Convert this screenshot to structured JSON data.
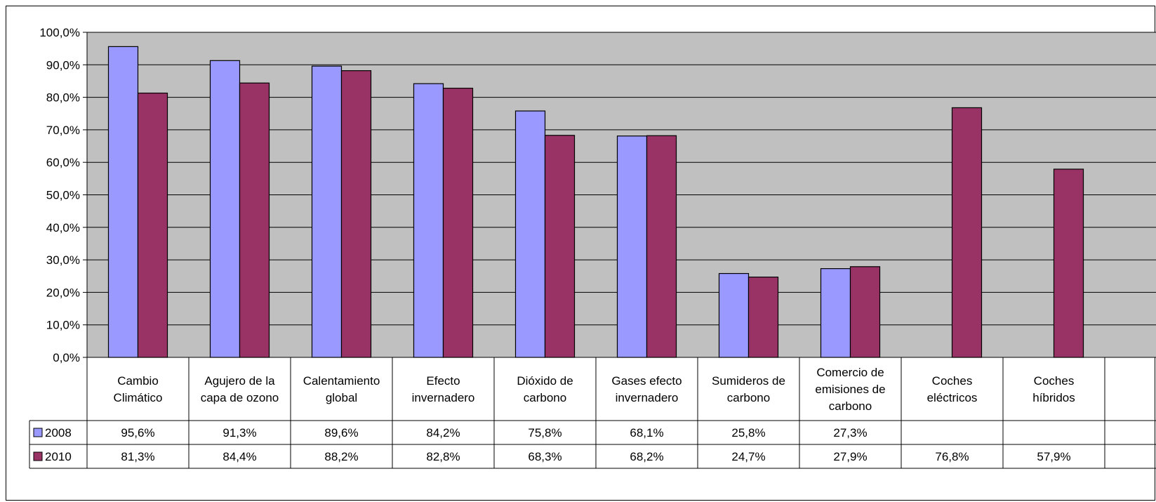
{
  "chart_data": {
    "type": "bar",
    "categories": [
      [
        "Cambio",
        "Climático"
      ],
      [
        "Agujero de la",
        "capa de ozono"
      ],
      [
        "Calentamiento",
        "global"
      ],
      [
        "Efecto",
        "invernadero"
      ],
      [
        "Dióxido de",
        "carbono"
      ],
      [
        "Gases efecto",
        "invernadero"
      ],
      [
        "Sumideros de",
        "carbono"
      ],
      [
        "Comercio de",
        "emisiones de",
        "carbono"
      ],
      [
        "Coches",
        "eléctricos"
      ],
      [
        "Coches",
        "híbridos"
      ]
    ],
    "series": [
      {
        "name": "2008",
        "color": "#9999ff",
        "values": [
          95.6,
          91.3,
          89.6,
          84.2,
          75.8,
          68.1,
          25.8,
          27.3,
          null,
          null
        ],
        "labels": [
          "95,6%",
          "91,3%",
          "89,6%",
          "84,2%",
          "75,8%",
          "68,1%",
          "25,8%",
          "27,3%",
          "",
          ""
        ]
      },
      {
        "name": "2010",
        "color": "#993366",
        "values": [
          81.3,
          84.4,
          88.2,
          82.8,
          68.3,
          68.2,
          24.7,
          27.9,
          76.8,
          57.9
        ],
        "labels": [
          "81,3%",
          "84,4%",
          "88,2%",
          "82,8%",
          "68,3%",
          "68,2%",
          "24,7%",
          "27,9%",
          "76,8%",
          "57,9%"
        ]
      }
    ],
    "yticks": [
      "0,0%",
      "10,0%",
      "20,0%",
      "30,0%",
      "40,0%",
      "50,0%",
      "60,0%",
      "70,0%",
      "80,0%",
      "90,0%",
      "100,0%"
    ],
    "ylim": [
      0,
      100
    ],
    "grid": true,
    "plot_background": "#c0c0c0",
    "legend": "data-table"
  }
}
